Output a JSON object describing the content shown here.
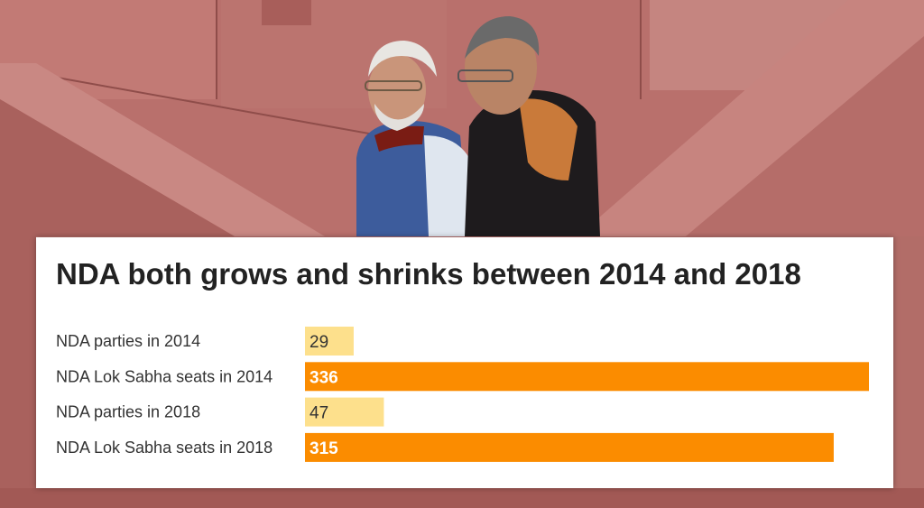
{
  "colors": {
    "light_bar": "#fde08c",
    "dark_bar": "#fb8c00",
    "light_text": "#333333",
    "dark_text": "#ffffff"
  },
  "chart_data": {
    "type": "bar",
    "orientation": "horizontal",
    "title": "NDA both grows and shrinks between 2014 and 2018",
    "categories": [
      "NDA parties in 2014",
      "NDA Lok Sabha seats in 2014",
      "NDA parties in 2018",
      "NDA Lok Sabha seats in 2018"
    ],
    "values": [
      29,
      336,
      47,
      315
    ],
    "bar_colors": [
      "#fde08c",
      "#fb8c00",
      "#fde08c",
      "#fb8c00"
    ],
    "xlim": [
      0,
      336
    ],
    "grid": false,
    "legend": "none"
  }
}
